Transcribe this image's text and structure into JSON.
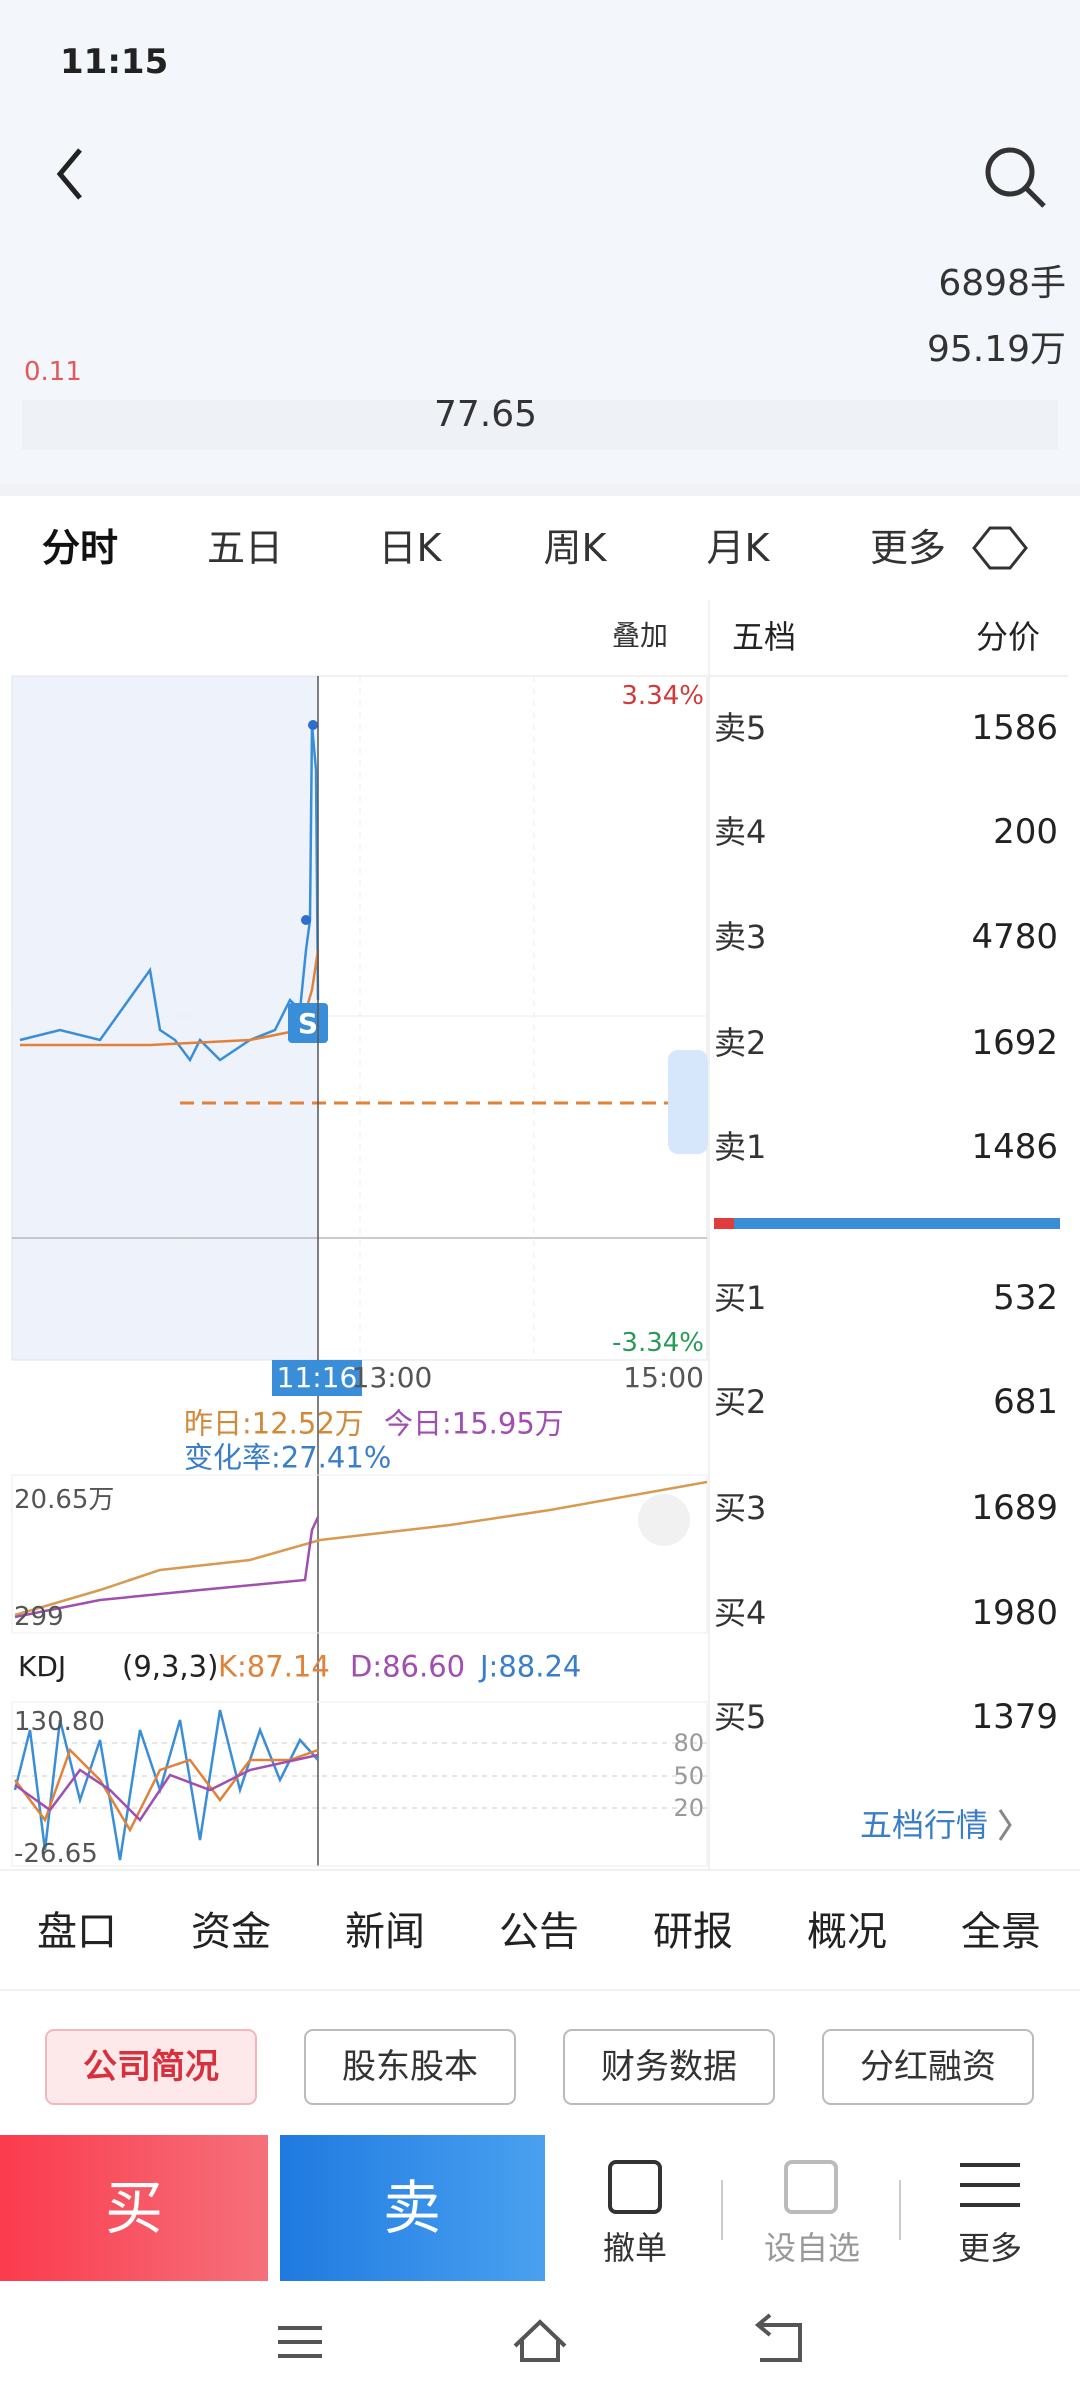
{
  "status_bar": {
    "time": "11:15"
  },
  "quote": {
    "change": "0.11",
    "volume": "6898手",
    "amount": "95.19万",
    "pe": "77.65"
  },
  "tabs": [
    "分时",
    "五日",
    "日K",
    "周K",
    "月K",
    "更多"
  ],
  "chart": {
    "overlay": "叠加",
    "upper_pct": "3.34%",
    "lower_pct": "-3.34%",
    "cursor_time": "11:16",
    "times": [
      "13:00",
      "15:00"
    ],
    "signal": "S"
  },
  "volume": {
    "yesterday": "昨日:12.52万",
    "today": "今日:15.95万",
    "change_rate": "变化率:27.41%",
    "max": "20.65万",
    "min": "299"
  },
  "kdj": {
    "name": "KDJ",
    "params": "(9,3,3)",
    "k": "K:87.14",
    "d": "D:86.60",
    "j": "J:88.24",
    "max": "130.80",
    "min": "-26.65",
    "levels": [
      "80",
      "50",
      "20"
    ]
  },
  "order_book": {
    "title": "五档",
    "header": "分价",
    "asks": [
      {
        "label": "卖5",
        "volume": 1586
      },
      {
        "label": "卖4",
        "volume": 200
      },
      {
        "label": "卖3",
        "volume": 4780
      },
      {
        "label": "卖2",
        "volume": 1692
      },
      {
        "label": "卖1",
        "volume": 1486
      }
    ],
    "bids": [
      {
        "label": "买1",
        "volume": 532
      },
      {
        "label": "买2",
        "volume": 681
      },
      {
        "label": "买3",
        "volume": 1689
      },
      {
        "label": "买4",
        "volume": 1980
      },
      {
        "label": "买5",
        "volume": 1379
      }
    ],
    "more": "五档行情"
  },
  "sections": [
    "盘口",
    "资金",
    "新闻",
    "公告",
    "研报",
    "概况",
    "全景"
  ],
  "subsections": [
    "公司简况",
    "股东股本",
    "财务数据",
    "分红融资"
  ],
  "actions": {
    "buy": "买",
    "sell": "卖",
    "tools": [
      "撤单",
      "设自选",
      "更多"
    ]
  }
}
